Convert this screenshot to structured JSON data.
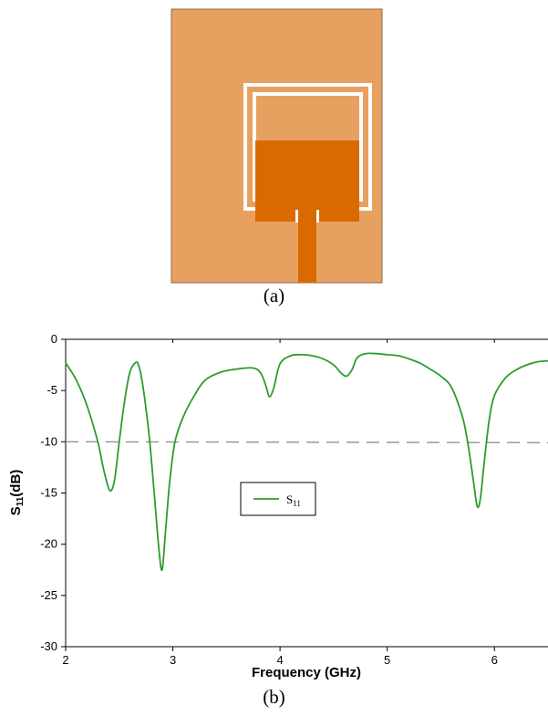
{
  "figure_a": {
    "caption": "(a)",
    "colors": {
      "substrate": "#e8a060",
      "patch": "#d96a00",
      "ring_gap": "#ffffff",
      "border": "#8a6a4a"
    }
  },
  "figure_b": {
    "caption": "(b)"
  },
  "chart_data": {
    "type": "line",
    "xlabel": "Frequency (GHz)",
    "ylabel": "S11(dB)",
    "ylabel_main": "S",
    "ylabel_sub": "11",
    "ylabel_unit": "(dB)",
    "xlim": [
      2,
      6.5
    ],
    "ylim": [
      -30,
      0
    ],
    "xticks": [
      2,
      3,
      4,
      5,
      6
    ],
    "yticks": [
      0,
      -5,
      -10,
      -15,
      -20,
      -25,
      -30
    ],
    "legend_position": "center-left",
    "legend_main": "S",
    "legend_sub": "11",
    "reference_line": {
      "y": -10,
      "style": "dashed",
      "color": "#999999"
    },
    "series": [
      {
        "name": "S11",
        "color": "#2e9b2e",
        "x": [
          2.0,
          2.1,
          2.2,
          2.3,
          2.35,
          2.4,
          2.43,
          2.46,
          2.5,
          2.55,
          2.6,
          2.65,
          2.68,
          2.72,
          2.78,
          2.83,
          2.87,
          2.9,
          2.93,
          2.97,
          3.02,
          3.1,
          3.2,
          3.3,
          3.45,
          3.6,
          3.75,
          3.82,
          3.87,
          3.9,
          3.94,
          4.0,
          4.1,
          4.2,
          4.3,
          4.4,
          4.5,
          4.57,
          4.62,
          4.67,
          4.72,
          4.8,
          4.9,
          5.0,
          5.1,
          5.2,
          5.3,
          5.4,
          5.5,
          5.6,
          5.7,
          5.75,
          5.8,
          5.84,
          5.87,
          5.9,
          5.95,
          6.0,
          6.1,
          6.2,
          6.3,
          6.4,
          6.5
        ],
        "y": [
          -2.3,
          -4.0,
          -6.5,
          -10.0,
          -12.5,
          -14.5,
          -14.7,
          -13.5,
          -10.0,
          -6.0,
          -3.2,
          -2.3,
          -2.5,
          -4.5,
          -9.5,
          -15.5,
          -20.5,
          -22.5,
          -19.0,
          -14.0,
          -10.0,
          -7.5,
          -5.5,
          -4.0,
          -3.2,
          -2.9,
          -2.8,
          -3.3,
          -4.6,
          -5.6,
          -4.8,
          -2.4,
          -1.6,
          -1.5,
          -1.6,
          -1.9,
          -2.5,
          -3.3,
          -3.6,
          -3.0,
          -1.8,
          -1.4,
          -1.4,
          -1.5,
          -1.6,
          -1.9,
          -2.3,
          -2.9,
          -3.6,
          -4.7,
          -7.5,
          -10.0,
          -13.5,
          -16.3,
          -15.5,
          -12.5,
          -8.0,
          -5.5,
          -3.8,
          -3.0,
          -2.5,
          -2.2,
          -2.1
        ]
      }
    ]
  }
}
